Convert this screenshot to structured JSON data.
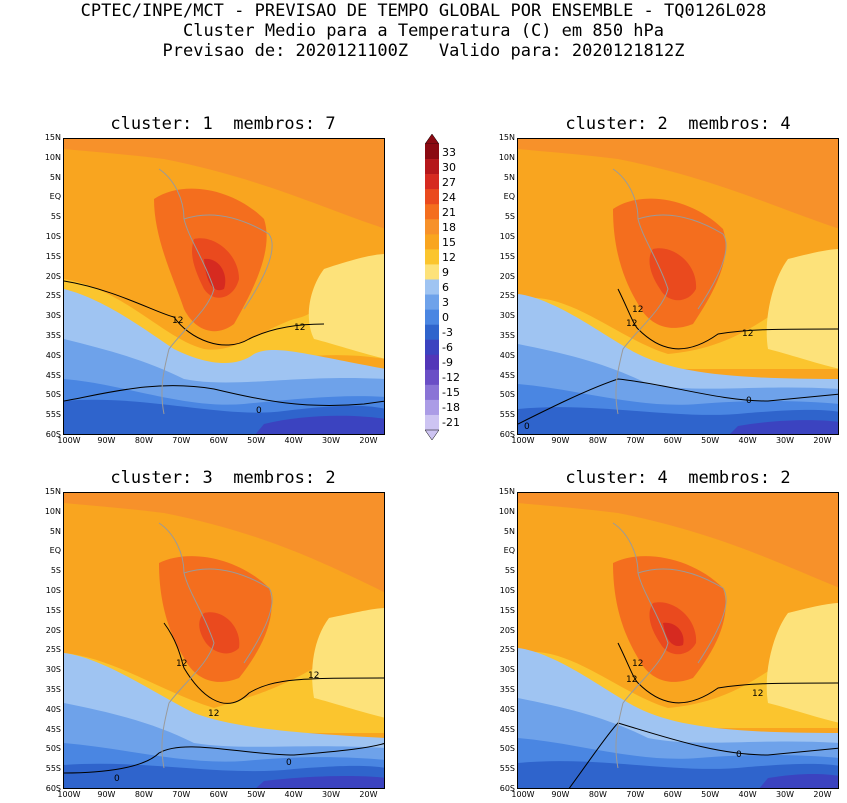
{
  "header": {
    "line1": "CPTEC/INPE/MCT - PREVISAO DE TEMPO GLOBAL POR ENSEMBLE - TQ0126L028",
    "line2": "Cluster Medio para a Temperatura (C) em 850 hPa",
    "line3": "Previsao de: 2020121100Z   Valido para: 2020121812Z"
  },
  "panels": [
    {
      "title": "cluster: 1  membros: 7",
      "contour_labels": [
        "12",
        "12",
        "0"
      ]
    },
    {
      "title": "cluster: 2  membros: 4",
      "contour_labels": [
        "12",
        "12",
        "12",
        "0",
        "0"
      ]
    },
    {
      "title": "cluster: 3  membros: 2",
      "contour_labels": [
        "12",
        "12",
        "12",
        "0",
        "0"
      ]
    },
    {
      "title": "cluster: 4  membros: 2",
      "contour_labels": [
        "12",
        "12",
        "12",
        "0"
      ]
    }
  ],
  "lat_ticks": [
    "15N",
    "10N",
    "5N",
    "EQ",
    "5S",
    "10S",
    "15S",
    "20S",
    "25S",
    "30S",
    "35S",
    "40S",
    "45S",
    "50S",
    "55S",
    "60S"
  ],
  "lon_ticks": [
    "100W",
    "90W",
    "80W",
    "70W",
    "60W",
    "50W",
    "40W",
    "30W",
    "20W"
  ],
  "colorbar": {
    "labels": [
      "33",
      "30",
      "27",
      "24",
      "21",
      "18",
      "15",
      "12",
      "9",
      "6",
      "3",
      "0",
      "-3",
      "-6",
      "-9",
      "-12",
      "-15",
      "-18",
      "-21"
    ],
    "colors": [
      "#8b0a12",
      "#b5171b",
      "#d62a20",
      "#ea4a1e",
      "#f46e1e",
      "#f7912a",
      "#f9a51f",
      "#fbc52e",
      "#fde27a",
      "#9fc4f2",
      "#6ea2ea",
      "#4a86e2",
      "#2f64cc",
      "#3b43c0",
      "#5236b8",
      "#6a4ec6",
      "#8a74d6",
      "#ab9ce6",
      "#cdc4f2"
    ]
  }
}
